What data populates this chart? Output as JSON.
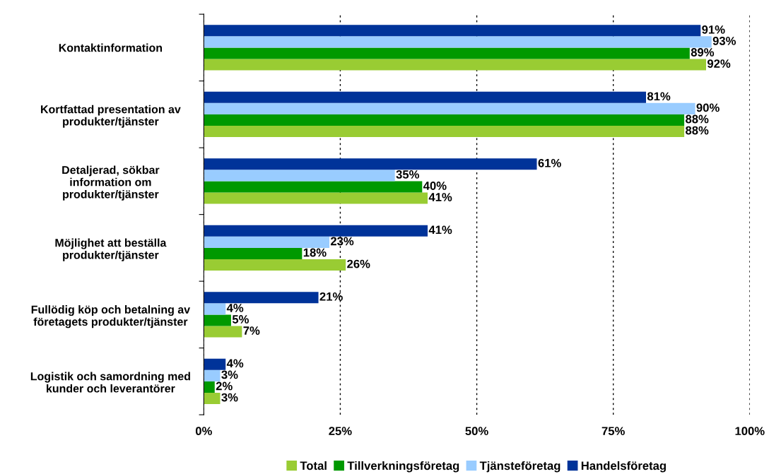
{
  "chart_data": {
    "type": "bar",
    "orientation": "horizontal",
    "categories": [
      "Kontaktinformation",
      "Kortfattad presentation av\nprodukter/tjänster",
      "Detaljerad, sökbar\ninformation om\nprodukter/tjänster",
      "Möjlighet att beställa\nprodukter/tjänster",
      "Fullödig köp och betalning av\nföretagets produkter/tjänster",
      "Logistik och samordning med\nkunder och leverantörer"
    ],
    "series": [
      {
        "name": "Total",
        "color": "#99cc33",
        "values": [
          92,
          88,
          41,
          26,
          7,
          3
        ],
        "value_labels": [
          "92%",
          "88%",
          "41%",
          "26%",
          "7%",
          "3%"
        ]
      },
      {
        "name": "Tillverkningsföretag",
        "color": "#009900",
        "values": [
          89,
          88,
          40,
          18,
          5,
          2
        ],
        "value_labels": [
          "89%",
          "88%",
          "40%",
          "18%",
          "5%",
          "2%"
        ]
      },
      {
        "name": "Tjänsteföretag",
        "color": "#99ccff",
        "values": [
          93,
          90,
          35,
          23,
          4,
          3
        ],
        "value_labels": [
          "93%",
          "90%",
          "35%",
          "23%",
          "4%",
          "3%"
        ]
      },
      {
        "name": "Handelsföretag",
        "color": "#003399",
        "values": [
          91,
          81,
          61,
          41,
          21,
          4
        ],
        "value_labels": [
          "91%",
          "81%",
          "61%",
          "41%",
          "21%",
          "4%"
        ]
      }
    ],
    "xlim": [
      0,
      100
    ],
    "xticks": [
      {
        "value": 0,
        "label": "0%"
      },
      {
        "value": 25,
        "label": "25%"
      },
      {
        "value": 50,
        "label": "50%"
      },
      {
        "value": 75,
        "label": "75%"
      },
      {
        "value": 100,
        "label": "100%"
      }
    ],
    "grid": "x",
    "legend": "bottom"
  }
}
